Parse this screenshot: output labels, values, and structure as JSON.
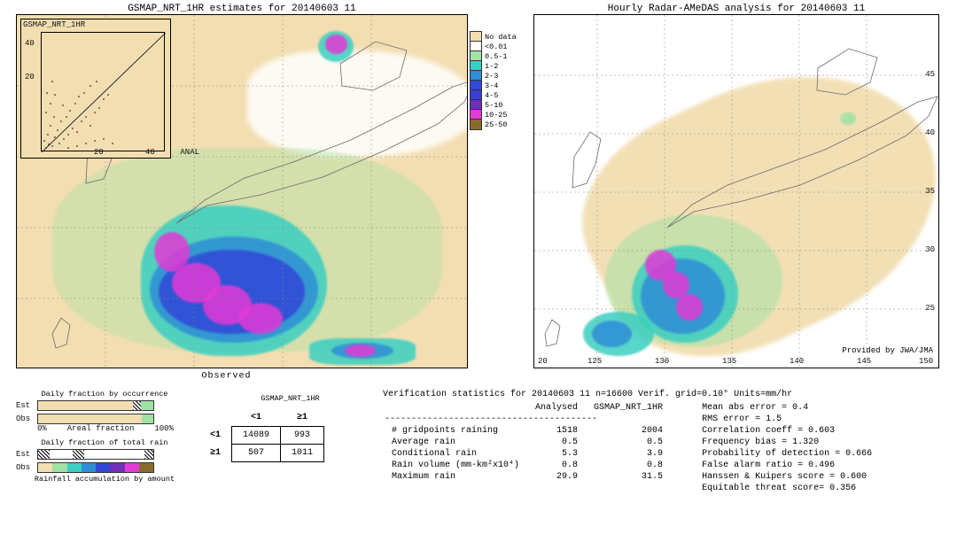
{
  "left": {
    "title": "GSMAP_NRT_1HR estimates for 20140603 11",
    "map_bg": "#f2deb1",
    "land_stroke": "#555",
    "inset": {
      "title": "GSMAP_NRT_1HR",
      "ticks": [
        "20",
        "40"
      ],
      "anal": "ANAL"
    },
    "ticks": {
      "x1": "20",
      "x2": "40"
    }
  },
  "right": {
    "title": "Hourly Radar-AMeDAS analysis for 20140603 11",
    "lat": [
      "45",
      "40",
      "35",
      "30",
      "25",
      "20"
    ],
    "lon": [
      "125",
      "130",
      "135",
      "140",
      "145",
      "150"
    ],
    "provided": "Provided by JWA/JMA"
  },
  "legend": {
    "labels": [
      "No data",
      "<0.01",
      "0.5-1",
      "1-2",
      "2-3",
      "3-4",
      "4-5",
      "5-10",
      "10-25",
      "25-50"
    ],
    "colors": [
      "#f2deb1",
      "#ffffff",
      "#9fe2a4",
      "#3acfc1",
      "#2f8ed6",
      "#3148d7",
      "#3a3fd3",
      "#722fb7",
      "#e23ad6",
      "#8a6b2f"
    ]
  },
  "bars": {
    "title1": "Daily fraction by occurrence",
    "title2": "Daily fraction of total rain",
    "est": "Est",
    "obs": "Obs",
    "axis0": "0%",
    "axis1": "Areal fraction",
    "axis2": "100%",
    "caption": "Rainfall accumulation by amount"
  },
  "contingency": {
    "title": "GSMAP_NRT_1HR",
    "col1": "<1",
    "col2": "≥1",
    "observed": "Observed",
    "cells": [
      [
        "14089",
        "993"
      ],
      [
        "507",
        "1011"
      ]
    ]
  },
  "stats": {
    "title": "Verification statistics for 20140603 11  n=16600  Verif. grid=0.10°  Units=mm/hr",
    "headers": [
      "Analysed",
      "GSMAP_NRT_1HR"
    ],
    "left_rows": [
      {
        "label": "# gridpoints raining",
        "a": "1518",
        "b": "2004"
      },
      {
        "label": "Average rain",
        "a": "0.5",
        "b": "0.5"
      },
      {
        "label": "Conditional rain",
        "a": "5.3",
        "b": "3.9"
      },
      {
        "label": "Rain volume (mm·km²x10⁴)",
        "a": "0.8",
        "b": "0.8"
      },
      {
        "label": "Maximum rain",
        "a": "29.9",
        "b": "31.5"
      }
    ],
    "right_rows": [
      "Mean abs error = 0.4",
      "RMS error = 1.5",
      "Correlation coeff = 0.603",
      "Frequency bias = 1.320",
      "Probability of detection = 0.666",
      "False alarm ratio = 0.496",
      "Hanssen & Kuipers score = 0.600",
      "Equitable threat score= 0.356"
    ]
  },
  "rainbow": [
    "#f2deb1",
    "#9fe2a4",
    "#3acfc1",
    "#2f8ed6",
    "#3148d7",
    "#722fb7",
    "#e23ad6",
    "#8a6b2f"
  ]
}
